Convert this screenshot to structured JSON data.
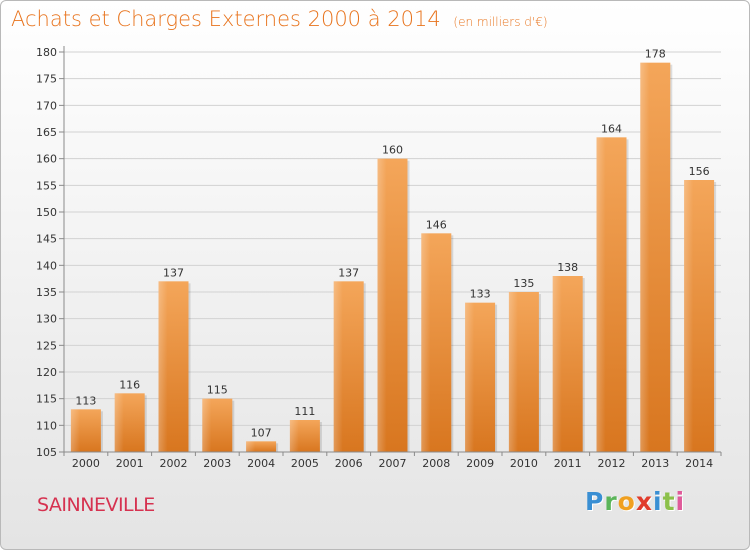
{
  "chart_data": {
    "type": "bar",
    "title": "Achats et Charges Externes 2000 à 2014",
    "unit": "(en milliers d'€)",
    "categories": [
      "2000",
      "2001",
      "2002",
      "2003",
      "2004",
      "2005",
      "2006",
      "2007",
      "2008",
      "2009",
      "2010",
      "2011",
      "2012",
      "2013",
      "2014"
    ],
    "values": [
      113,
      116,
      137,
      115,
      107,
      111,
      137,
      160,
      146,
      133,
      135,
      138,
      164,
      178,
      156
    ],
    "ylim": [
      105,
      180
    ],
    "yticks": [
      105,
      110,
      115,
      120,
      125,
      130,
      135,
      140,
      145,
      150,
      155,
      160,
      165,
      170,
      175,
      180
    ],
    "grid": true,
    "bar_color": "#f0a050",
    "bar_color_dark": "#d4701e"
  },
  "footer": {
    "commune": "SAINNEVILLE",
    "logo_text": "Proxiti"
  },
  "colors": {
    "title": "#e8741e",
    "commune": "#d63250"
  }
}
